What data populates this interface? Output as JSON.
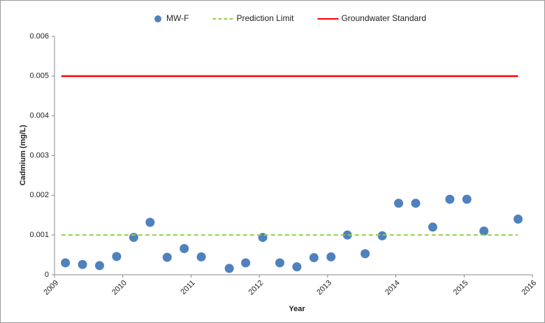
{
  "chart_data": {
    "type": "scatter",
    "x_label": "Year",
    "y_label": "Cadmium (mg/L)",
    "xlim": [
      2009,
      2016
    ],
    "xticks": [
      2009,
      2010,
      2011,
      2012,
      2013,
      2014,
      2015,
      2016
    ],
    "ylim": [
      0,
      0.006
    ],
    "yticks": [
      0,
      0.001,
      0.002,
      0.003,
      0.004,
      0.005,
      0.006
    ],
    "legend": "top",
    "series": [
      {
        "name": "MW-F",
        "color": "#4f81bd",
        "style": "marker",
        "x": [
          2009.16,
          2009.41,
          2009.66,
          2009.91,
          2010.16,
          2010.4,
          2010.65,
          2010.9,
          2011.15,
          2011.56,
          2011.8,
          2012.05,
          2012.3,
          2012.55,
          2012.8,
          2013.05,
          2013.29,
          2013.55,
          2013.8,
          2014.04,
          2014.29,
          2014.54,
          2014.79,
          2015.04,
          2015.29,
          2015.79
        ],
        "values": [
          0.0003,
          0.00026,
          0.00023,
          0.00046,
          0.00094,
          0.00132,
          0.00044,
          0.00066,
          0.00045,
          0.00016,
          0.0003,
          0.00094,
          0.0003,
          0.0002,
          0.00043,
          0.00045,
          0.001,
          0.00053,
          0.00098,
          0.0018,
          0.0018,
          0.0012,
          0.0019,
          0.0019,
          0.0011,
          0.0014
        ]
      },
      {
        "name": "Prediction Limit",
        "color": "#92d050",
        "style": "dashed",
        "x": [
          2009.1,
          2015.79
        ],
        "values": [
          0.001,
          0.001
        ]
      },
      {
        "name": "Groundwater Standard",
        "color": "#ff0000",
        "style": "solid",
        "x": [
          2009.1,
          2015.79
        ],
        "values": [
          0.005,
          0.005
        ]
      }
    ]
  }
}
